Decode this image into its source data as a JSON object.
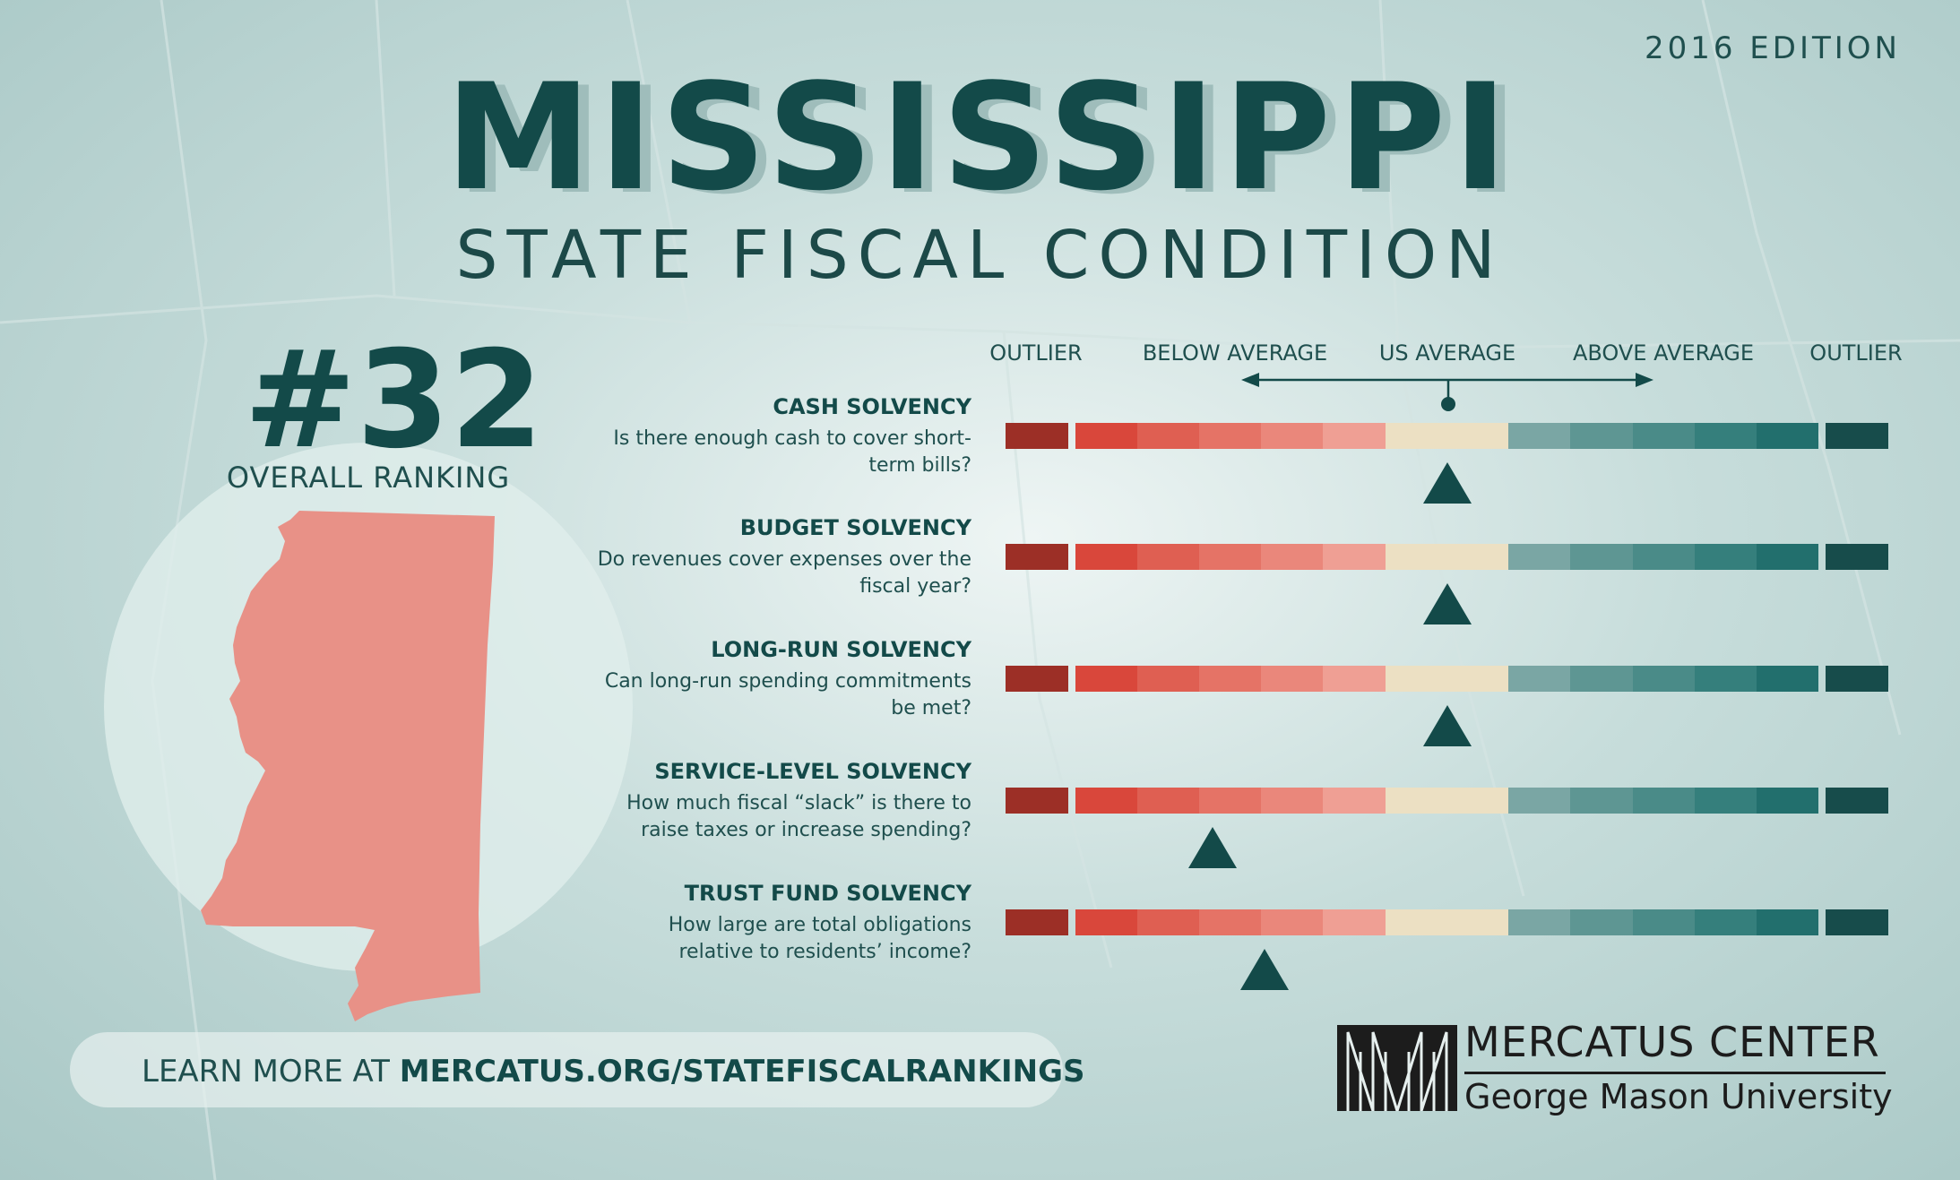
{
  "edition": "2016 EDITION",
  "title": "MISSISSIPPI",
  "subtitle": "STATE FISCAL CONDITION",
  "ranking": {
    "number": "#32",
    "label": "OVERALL RANKING"
  },
  "scale_labels": [
    "OUTLIER",
    "BELOW AVERAGE",
    "US AVERAGE",
    "ABOVE AVERAGE",
    "OUTLIER"
  ],
  "colors": {
    "dark_teal": "#134a49",
    "scale": [
      "#9c2f26",
      "#d9473b",
      "#df5f52",
      "#e57366",
      "#ea877b",
      "#ef9f94",
      "#ece0c3",
      "#7aa6a4",
      "#5e9693",
      "#4a8b88",
      "#357f7c",
      "#226f6d",
      "#174c4b"
    ]
  },
  "metrics": [
    {
      "title": "CASH SOLVENCY",
      "desc": "Is there enough cash to cover short-term bills?",
      "position": 0.5
    },
    {
      "title": "BUDGET SOLVENCY",
      "desc": "Do revenues cover expenses over the fiscal year?",
      "position": 0.5
    },
    {
      "title": "LONG-RUN SOLVENCY",
      "desc": "Can long-run spending commitments be met?",
      "position": 0.5
    },
    {
      "title": "SERVICE-LEVEL SOLVENCY",
      "desc": "How much fiscal “slack” is there to raise taxes or increase spending?",
      "position": 0.185
    },
    {
      "title": "TRUST FUND SOLVENCY",
      "desc": "How large are total obligations relative to residents’ income?",
      "position": 0.255
    }
  ],
  "learn_more": {
    "prefix": "LEARN MORE AT ",
    "url": "MERCATUS.ORG/STATEFISCALRANKINGS"
  },
  "logo": {
    "name": "MERCATUS CENTER",
    "sub": "George Mason University"
  }
}
